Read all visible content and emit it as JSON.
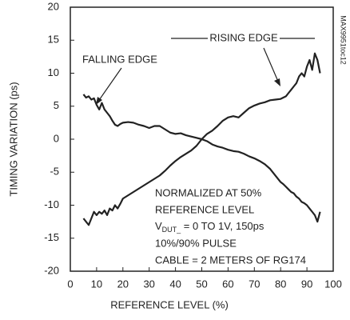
{
  "chart_data": {
    "type": "line",
    "xlabel": "REFERENCE LEVEL (%)",
    "ylabel": "TIMING VARIATION (ps)",
    "figure_id": "MAX9951toc12",
    "note": [
      "NORMALIZED AT 50%",
      "REFERENCE LEVEL",
      {
        "main": "V",
        "sub": "DUT_",
        "rest": " = 0 TO 1V, 150ps"
      },
      "10%/90% PULSE",
      "CABLE = 2 METERS OF RG174"
    ],
    "x": [
      5,
      6,
      7,
      8,
      9,
      10,
      11,
      12,
      13,
      14,
      15,
      16,
      17,
      18,
      19,
      20,
      22,
      24,
      26,
      28,
      30,
      32,
      34,
      36,
      38,
      40,
      42,
      44,
      46,
      48,
      50,
      52,
      54,
      56,
      58,
      60,
      62,
      64,
      66,
      68,
      70,
      72,
      74,
      76,
      78,
      80,
      81,
      82,
      83,
      84,
      85,
      86,
      87,
      88,
      89,
      90,
      91,
      92,
      93,
      94,
      95
    ],
    "series": [
      {
        "name": "FALLING EDGE",
        "color": "#222222",
        "values": [
          6.8,
          6.3,
          6.5,
          6,
          6.2,
          5.2,
          4.5,
          5.5,
          4.5,
          4,
          3.5,
          2.8,
          2.2,
          2,
          2.3,
          2.5,
          2.6,
          2.5,
          2.2,
          2,
          1.7,
          2,
          2,
          1.5,
          1,
          0.8,
          0.9,
          0.6,
          0.4,
          0.2,
          0,
          -0.3,
          -0.8,
          -1.1,
          -1.3,
          -1.6,
          -1.8,
          -1.9,
          -2.2,
          -2.6,
          -2.9,
          -3.3,
          -3.8,
          -4.5,
          -5.5,
          -6.5,
          -6.8,
          -7.2,
          -7.6,
          -8,
          -8.2,
          -8.7,
          -9,
          -9.5,
          -9.7,
          -10,
          -10.5,
          -11,
          -11.5,
          -12.5,
          -11
        ]
      },
      {
        "name": "RISING EDGE",
        "color": "#222222",
        "values": [
          -12,
          -12.5,
          -13,
          -12,
          -11,
          -11.5,
          -11,
          -11.3,
          -10.8,
          -11.5,
          -10.5,
          -10.8,
          -10,
          -10.5,
          -9.8,
          -9,
          -8.5,
          -8,
          -7.5,
          -7,
          -6.5,
          -6,
          -5.5,
          -4.8,
          -4,
          -3.3,
          -2.7,
          -2.2,
          -1.7,
          -1,
          0,
          0.8,
          1.3,
          2,
          2.8,
          3.3,
          3.5,
          3.3,
          4,
          4.7,
          5.1,
          5.4,
          5.6,
          5.9,
          6,
          6.1,
          6.3,
          6.5,
          7,
          7.5,
          8,
          8.5,
          9.5,
          10,
          9.5,
          11,
          12,
          10.5,
          13,
          12,
          10
        ]
      }
    ],
    "xlim": [
      0,
      100
    ],
    "xticks": [
      0,
      10,
      20,
      30,
      40,
      50,
      60,
      70,
      80,
      90,
      100
    ],
    "ylim": [
      -20,
      20
    ],
    "yticks": [
      -20,
      -15,
      -10,
      -5,
      0,
      5,
      10,
      15,
      20
    ],
    "grid": false
  }
}
